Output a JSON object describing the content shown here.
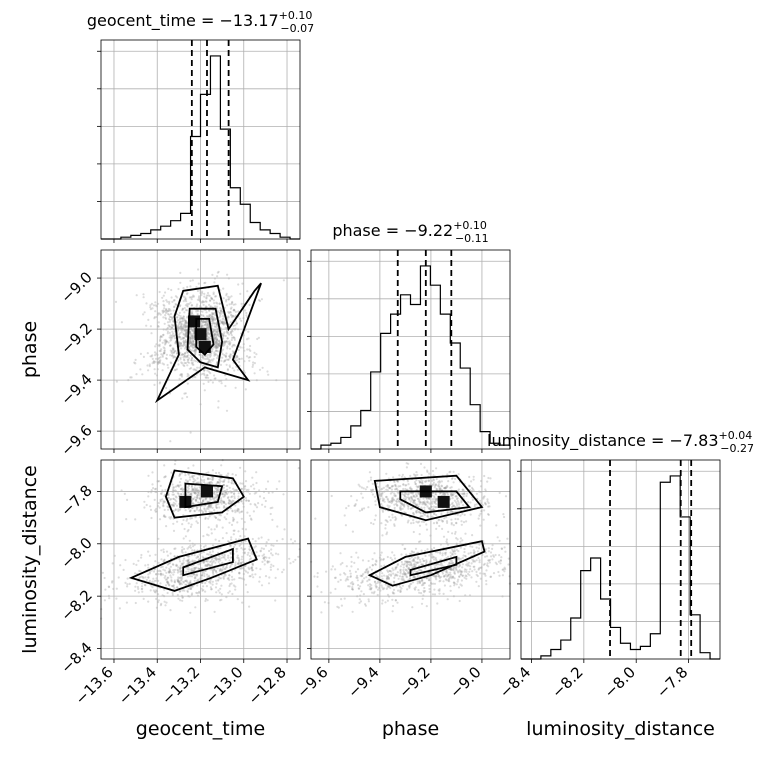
{
  "chart_data": {
    "type": "corner",
    "parameters": [
      "geocent_time",
      "phase",
      "luminosity_distance"
    ],
    "titles": [
      {
        "param": "geocent_time",
        "prefix": "geocent_time = ",
        "median": "−13.17",
        "plus": "+0.10",
        "minus": "−0.07"
      },
      {
        "param": "phase",
        "prefix": "phase = ",
        "median": "−9.22",
        "plus": "+0.10",
        "minus": "−0.11"
      },
      {
        "param": "luminosity_distance",
        "prefix": "luminosity_distance = ",
        "median": "−7.83",
        "plus": "+0.04",
        "minus": "−0.27"
      }
    ],
    "ranges": {
      "geocent_time": [
        -13.66,
        -12.74
      ],
      "phase": [
        -9.67,
        -8.89
      ],
      "luminosity_distance": [
        -8.44,
        -7.68
      ]
    },
    "ticks": {
      "geocent_time": {
        "values": [
          -13.6,
          -13.4,
          -13.2,
          -13.0,
          -12.8
        ],
        "labels": [
          "−13.6",
          "−13.4",
          "−13.2",
          "−13.0",
          "−12.8"
        ]
      },
      "phase": {
        "values": [
          -9.6,
          -9.4,
          -9.2,
          -9.0
        ],
        "labels": [
          "−9.6",
          "−9.4",
          "−9.2",
          "−9.0"
        ]
      },
      "luminosity_distance": {
        "values": [
          -8.4,
          -8.2,
          -8.0,
          -7.8
        ],
        "labels": [
          "−8.4",
          "−8.2",
          "−8.0",
          "−7.8"
        ]
      }
    },
    "quantiles": {
      "geocent_time": [
        -13.24,
        -13.17,
        -13.07
      ],
      "phase": [
        -9.33,
        -9.22,
        -9.12
      ],
      "luminosity_distance": [
        -8.1,
        -7.83,
        -7.79
      ]
    },
    "histograms": {
      "geocent_time": {
        "edges_start": -13.66,
        "bin_width": 0.046,
        "counts": [
          0,
          0,
          1,
          2,
          3,
          5,
          7,
          10,
          14,
          56,
          79,
          100,
          60,
          28,
          19,
          9,
          5,
          3,
          1,
          0
        ]
      },
      "phase": {
        "edges_start": -9.67,
        "bin_width": 0.039,
        "counts": [
          0,
          2,
          3,
          6,
          12,
          20,
          40,
          60,
          70,
          80,
          75,
          95,
          85,
          70,
          55,
          42,
          23,
          9,
          3,
          2
        ]
      },
      "luminosity_distance": {
        "edges_start": -8.44,
        "bin_width": 0.038,
        "counts": [
          0,
          0,
          1,
          3,
          6,
          13,
          28,
          32,
          19,
          10,
          5,
          3,
          4,
          8,
          56,
          58,
          45,
          14,
          2,
          0
        ]
      }
    },
    "grid": true,
    "point_cloud_color": "#9a9a9a",
    "line_color": "#000000"
  }
}
